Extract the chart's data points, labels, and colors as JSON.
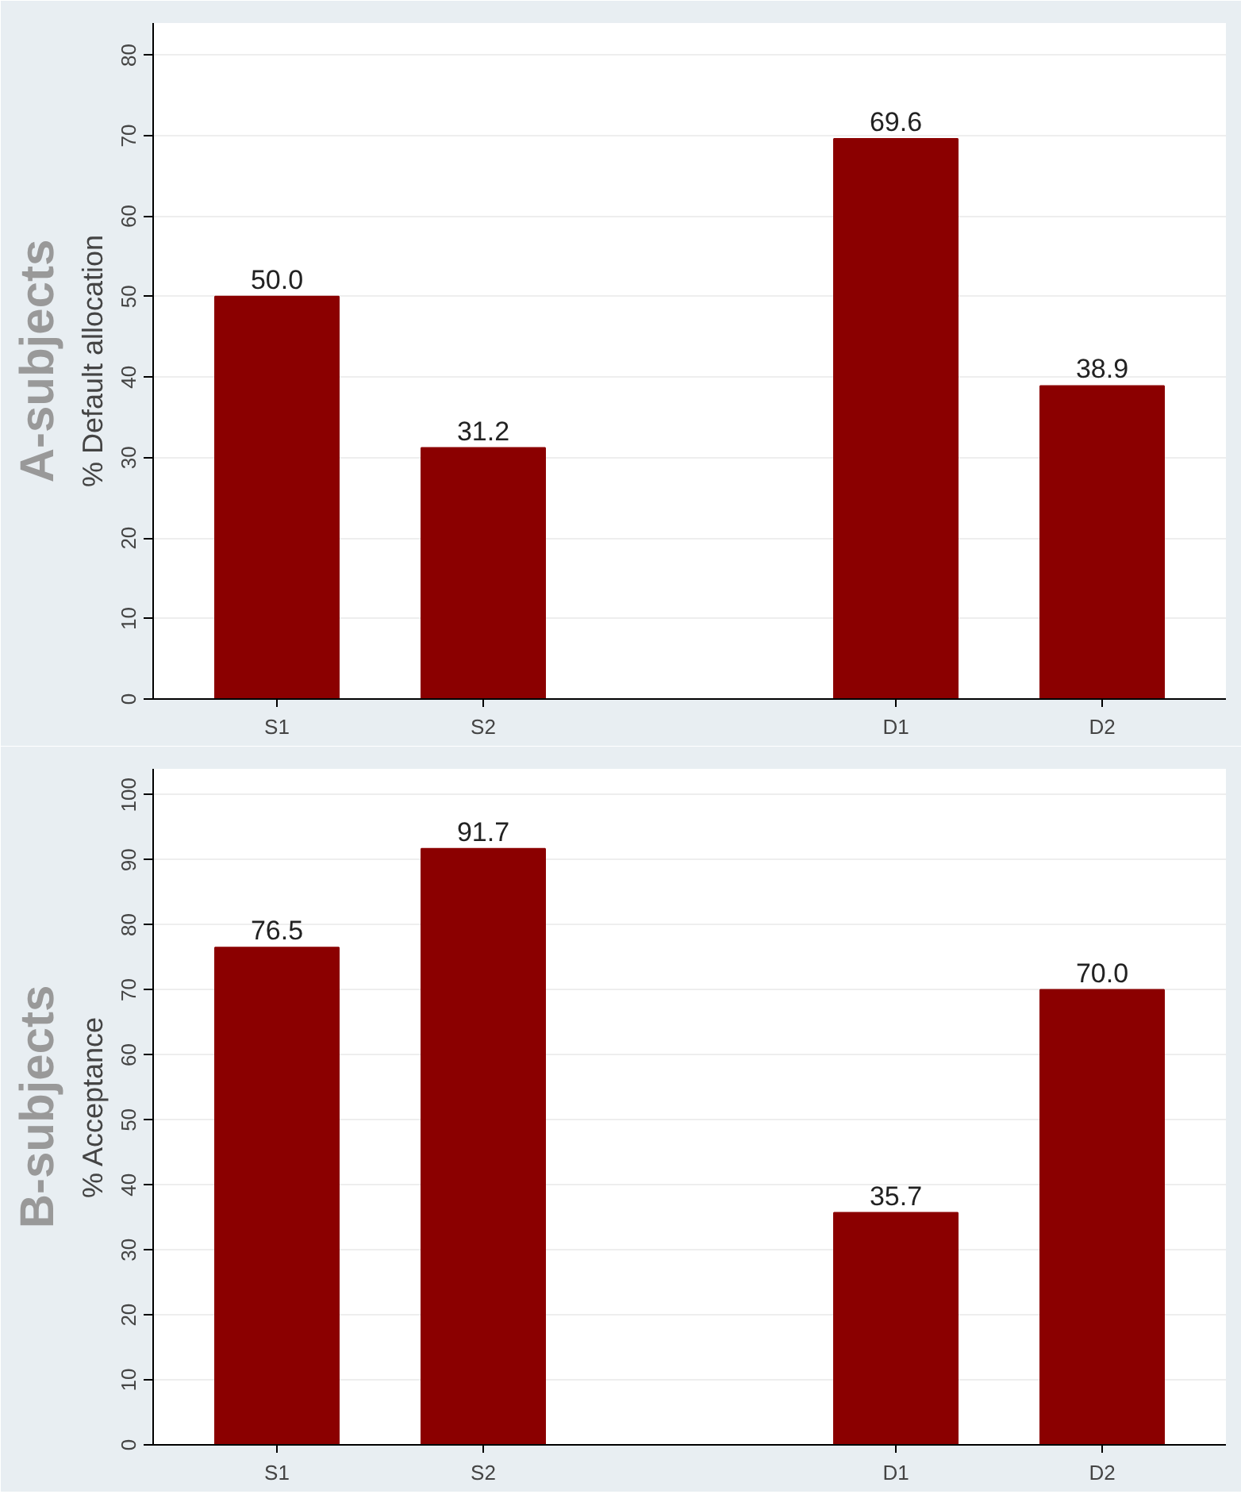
{
  "chart_data": [
    {
      "type": "bar",
      "title": "A-subjects",
      "ylabel": "% Default allocation",
      "categories": [
        "S1",
        "S2",
        null,
        "D1",
        "D2"
      ],
      "values": [
        50.0,
        31.2,
        null,
        69.6,
        38.9
      ],
      "value_labels": [
        "50.0",
        "31.2",
        null,
        "69.6",
        "38.9"
      ],
      "color": "#8b0000",
      "ylim": [
        0,
        84
      ],
      "yticks": [
        0,
        10,
        20,
        30,
        40,
        50,
        60,
        70,
        80
      ],
      "grid": "y"
    },
    {
      "type": "bar",
      "title": "B-subjects",
      "ylabel": "% Acceptance",
      "categories": [
        "S1",
        "S2",
        null,
        "D1",
        "D2"
      ],
      "values": [
        76.5,
        91.7,
        null,
        35.7,
        70.0
      ],
      "value_labels": [
        "76.5",
        "91.7",
        null,
        "35.7",
        "70.0"
      ],
      "color": "#8b0000",
      "ylim": [
        0,
        104
      ],
      "yticks": [
        0,
        10,
        20,
        30,
        40,
        50,
        60,
        70,
        80,
        90,
        100
      ],
      "grid": "y"
    }
  ]
}
